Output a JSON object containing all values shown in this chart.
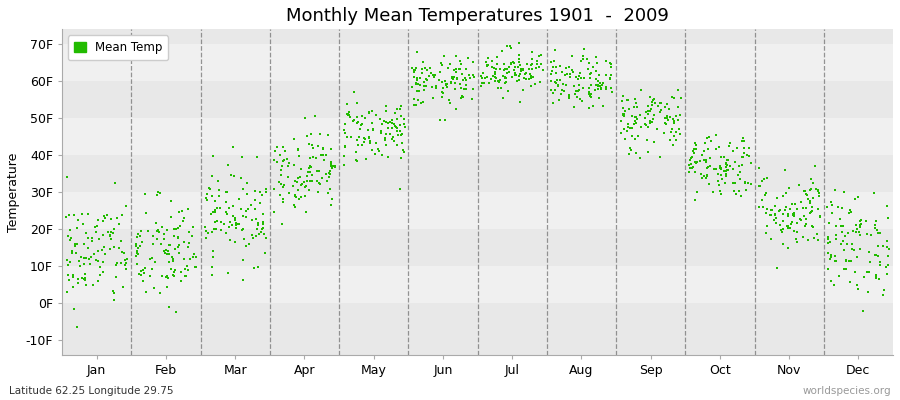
{
  "title": "Monthly Mean Temperatures 1901  -  2009",
  "ylabel": "Temperature",
  "xlabel_bottom": "Latitude 62.25 Longitude 29.75",
  "watermark": "worldspecies.org",
  "legend_label": "Mean Temp",
  "dot_color": "#22bb00",
  "band_colors": [
    "#e8e8e8",
    "#f0f0f0"
  ],
  "ylim": [
    -14,
    74
  ],
  "yticks": [
    -10,
    0,
    10,
    20,
    30,
    40,
    50,
    60,
    70
  ],
  "ytick_labels": [
    "-10F",
    "0F",
    "10F",
    "20F",
    "30F",
    "40F",
    "50F",
    "60F",
    "70F"
  ],
  "months": [
    "Jan",
    "Feb",
    "Mar",
    "Apr",
    "May",
    "Jun",
    "Jul",
    "Aug",
    "Sep",
    "Oct",
    "Nov",
    "Dec"
  ],
  "month_means_F": [
    13.5,
    13.5,
    24.0,
    36.0,
    46.5,
    59.5,
    63.0,
    59.5,
    49.5,
    37.5,
    25.0,
    16.0
  ],
  "month_std_F": [
    7.5,
    7.5,
    6.5,
    5.5,
    4.5,
    3.5,
    3.0,
    3.5,
    4.5,
    4.5,
    5.5,
    7.0
  ],
  "n_years": 109,
  "seed": 42
}
